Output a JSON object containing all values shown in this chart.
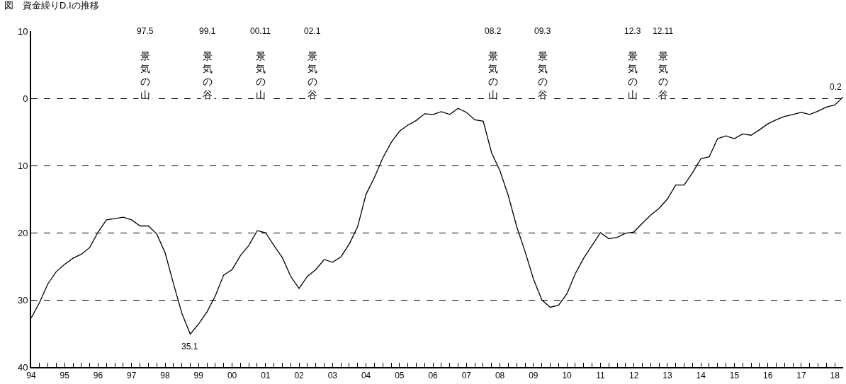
{
  "chart_data": {
    "type": "line",
    "title": "図　資金繰りD.Iの推移",
    "x": [
      1994,
      1994.25,
      1994.5,
      1994.75,
      1995,
      1995.25,
      1995.5,
      1995.75,
      1996,
      1996.25,
      1996.5,
      1996.75,
      1997,
      1997.25,
      1997.5,
      1997.75,
      1998,
      1998.25,
      1998.5,
      1998.75,
      1999,
      1999.25,
      1999.5,
      1999.75,
      2000,
      2000.25,
      2000.5,
      2000.75,
      2001,
      2001.25,
      2001.5,
      2001.75,
      2002,
      2002.25,
      2002.5,
      2002.75,
      2003,
      2003.25,
      2003.5,
      2003.75,
      2004,
      2004.25,
      2004.5,
      2004.75,
      2005,
      2005.25,
      2005.5,
      2005.75,
      2006,
      2006.25,
      2006.5,
      2006.75,
      2007,
      2007.25,
      2007.5,
      2007.75,
      2008,
      2008.25,
      2008.5,
      2008.75,
      2009,
      2009.25,
      2009.5,
      2009.75,
      2010,
      2010.25,
      2010.5,
      2010.75,
      2011,
      2011.25,
      2011.5,
      2011.75,
      2012,
      2012.25,
      2012.5,
      2012.75,
      2013,
      2013.25,
      2013.5,
      2013.75,
      2014,
      2014.25,
      2014.5,
      2014.75,
      2015,
      2015.25,
      2015.5,
      2015.75,
      2016,
      2016.25,
      2016.5,
      2016.75,
      2017,
      2017.25,
      2017.5,
      2017.75,
      2018,
      2018.25
    ],
    "series": [
      {
        "color": "#000000",
        "values": [
          -32.7,
          -30.4,
          -27.6,
          -25.8,
          -24.7,
          -23.8,
          -23.2,
          -22.2,
          -19.9,
          -18.1,
          -17.9,
          -17.7,
          -18.1,
          -19.0,
          -19.0,
          -20.2,
          -23.0,
          -27.6,
          -32.0,
          -35.1,
          -33.6,
          -31.8,
          -29.4,
          -26.3,
          -25.5,
          -23.4,
          -21.9,
          -19.7,
          -20.0,
          -21.9,
          -23.7,
          -26.5,
          -28.3,
          -26.5,
          -25.5,
          -24.0,
          -24.4,
          -23.6,
          -21.7,
          -19.1,
          -14.3,
          -11.8,
          -8.9,
          -6.6,
          -4.9,
          -4.0,
          -3.3,
          -2.3,
          -2.4,
          -2.0,
          -2.4,
          -1.5,
          -2.1,
          -3.2,
          -3.4,
          -8.1,
          -10.8,
          -14.5,
          -19.1,
          -22.8,
          -26.9,
          -30.0,
          -31.1,
          -30.8,
          -29.1,
          -26.1,
          -23.8,
          -21.9,
          -20.0,
          -20.9,
          -20.7,
          -20.1,
          -19.9,
          -18.6,
          -17.4,
          -16.4,
          -15.0,
          -12.9,
          -12.9,
          -11.1,
          -9.0,
          -8.7,
          -6.0,
          -5.6,
          -6.0,
          -5.3,
          -5.5,
          -4.7,
          -3.8,
          -3.2,
          -2.7,
          -2.4,
          -2.1,
          -2.4,
          -1.9,
          -1.3,
          -1.0,
          0.2
        ]
      }
    ],
    "xlim": [
      1994,
      2018.25
    ],
    "xticks": [
      {
        "value": 1994,
        "label": "94"
      },
      {
        "value": 1994.25,
        "label": null
      },
      {
        "value": 1994.5,
        "label": null
      },
      {
        "value": 1994.75,
        "label": null
      },
      {
        "value": 1995,
        "label": "95"
      },
      {
        "value": 1995.25,
        "label": null
      },
      {
        "value": 1995.5,
        "label": null
      },
      {
        "value": 1995.75,
        "label": null
      },
      {
        "value": 1996,
        "label": "96"
      },
      {
        "value": 1996.25,
        "label": null
      },
      {
        "value": 1996.5,
        "label": null
      },
      {
        "value": 1996.75,
        "label": null
      },
      {
        "value": 1997,
        "label": "97"
      },
      {
        "value": 1997.25,
        "label": null
      },
      {
        "value": 1997.5,
        "label": null
      },
      {
        "value": 1997.75,
        "label": null
      },
      {
        "value": 1998,
        "label": "98"
      },
      {
        "value": 1998.25,
        "label": null
      },
      {
        "value": 1998.5,
        "label": null
      },
      {
        "value": 1998.75,
        "label": null
      },
      {
        "value": 1999,
        "label": "99"
      },
      {
        "value": 1999.25,
        "label": null
      },
      {
        "value": 1999.5,
        "label": null
      },
      {
        "value": 1999.75,
        "label": null
      },
      {
        "value": 2000,
        "label": "00"
      },
      {
        "value": 2000.25,
        "label": null
      },
      {
        "value": 2000.5,
        "label": null
      },
      {
        "value": 2000.75,
        "label": null
      },
      {
        "value": 2001,
        "label": "01"
      },
      {
        "value": 2001.25,
        "label": null
      },
      {
        "value": 2001.5,
        "label": null
      },
      {
        "value": 2001.75,
        "label": null
      },
      {
        "value": 2002,
        "label": "02"
      },
      {
        "value": 2002.25,
        "label": null
      },
      {
        "value": 2002.5,
        "label": null
      },
      {
        "value": 2002.75,
        "label": null
      },
      {
        "value": 2003,
        "label": "03"
      },
      {
        "value": 2003.25,
        "label": null
      },
      {
        "value": 2003.5,
        "label": null
      },
      {
        "value": 2003.75,
        "label": null
      },
      {
        "value": 2004,
        "label": "04"
      },
      {
        "value": 2004.25,
        "label": null
      },
      {
        "value": 2004.5,
        "label": null
      },
      {
        "value": 2004.75,
        "label": null
      },
      {
        "value": 2005,
        "label": "05"
      },
      {
        "value": 2005.25,
        "label": null
      },
      {
        "value": 2005.5,
        "label": null
      },
      {
        "value": 2005.75,
        "label": null
      },
      {
        "value": 2006,
        "label": "06"
      },
      {
        "value": 2006.25,
        "label": null
      },
      {
        "value": 2006.5,
        "label": null
      },
      {
        "value": 2006.75,
        "label": null
      },
      {
        "value": 2007,
        "label": "07"
      },
      {
        "value": 2007.25,
        "label": null
      },
      {
        "value": 2007.5,
        "label": null
      },
      {
        "value": 2007.75,
        "label": null
      },
      {
        "value": 2008,
        "label": "08"
      },
      {
        "value": 2008.25,
        "label": null
      },
      {
        "value": 2008.5,
        "label": null
      },
      {
        "value": 2008.75,
        "label": null
      },
      {
        "value": 2009,
        "label": "09"
      },
      {
        "value": 2009.25,
        "label": null
      },
      {
        "value": 2009.5,
        "label": null
      },
      {
        "value": 2009.75,
        "label": null
      },
      {
        "value": 2010,
        "label": "10"
      },
      {
        "value": 2010.25,
        "label": null
      },
      {
        "value": 2010.5,
        "label": null
      },
      {
        "value": 2010.75,
        "label": null
      },
      {
        "value": 2011,
        "label": "11"
      },
      {
        "value": 2011.25,
        "label": null
      },
      {
        "value": 2011.5,
        "label": null
      },
      {
        "value": 2011.75,
        "label": null
      },
      {
        "value": 2012,
        "label": "12"
      },
      {
        "value": 2012.25,
        "label": null
      },
      {
        "value": 2012.5,
        "label": null
      },
      {
        "value": 2012.75,
        "label": null
      },
      {
        "value": 2013,
        "label": "13"
      },
      {
        "value": 2013.25,
        "label": null
      },
      {
        "value": 2013.5,
        "label": null
      },
      {
        "value": 2013.75,
        "label": null
      },
      {
        "value": 2014,
        "label": "14"
      },
      {
        "value": 2014.25,
        "label": null
      },
      {
        "value": 2014.5,
        "label": null
      },
      {
        "value": 2014.75,
        "label": null
      },
      {
        "value": 2015,
        "label": "15"
      },
      {
        "value": 2015.25,
        "label": null
      },
      {
        "value": 2015.5,
        "label": null
      },
      {
        "value": 2015.75,
        "label": null
      },
      {
        "value": 2016,
        "label": "16"
      },
      {
        "value": 2016.25,
        "label": null
      },
      {
        "value": 2016.5,
        "label": null
      },
      {
        "value": 2016.75,
        "label": null
      },
      {
        "value": 2017,
        "label": "17"
      },
      {
        "value": 2017.25,
        "label": null
      },
      {
        "value": 2017.5,
        "label": null
      },
      {
        "value": 2017.75,
        "label": null
      },
      {
        "value": 2018,
        "label": "18"
      }
    ],
    "ylim": [
      -40,
      10
    ],
    "yticks": [
      10,
      0,
      {
        "value": -10,
        "label": "10"
      },
      {
        "value": -20,
        "label": "20"
      },
      {
        "value": -30,
        "label": "30"
      },
      {
        "value": -40,
        "label": "40"
      }
    ],
    "grid": "y",
    "marker": "none",
    "line_style": "solid",
    "annotations": [
      {
        "text": "97.5",
        "x": 1997.4
      },
      "景気の山",
      {
        "text": "99.1",
        "x": 1999.26
      },
      "景気の谷",
      {
        "text": "00.11",
        "x": 2000.85
      },
      "景気の山",
      {
        "text": "02.1",
        "x": 2002.4
      },
      "景気の谷",
      {
        "text": "08.2",
        "x": 2007.8
      },
      "景気の山",
      {
        "text": "09.3",
        "x": 2009.28
      },
      "景気の谷",
      {
        "text": "12.3",
        "x": 2011.96
      },
      "景気の山",
      {
        "text": "12.11",
        "x": 2012.87
      },
      "景気の谷",
      {
        "text": "35.1",
        "x": 1998.75,
        "y": -35.1
      },
      {
        "text": "0.2",
        "x": 2018.25,
        "y": 0.2
      }
    ]
  }
}
